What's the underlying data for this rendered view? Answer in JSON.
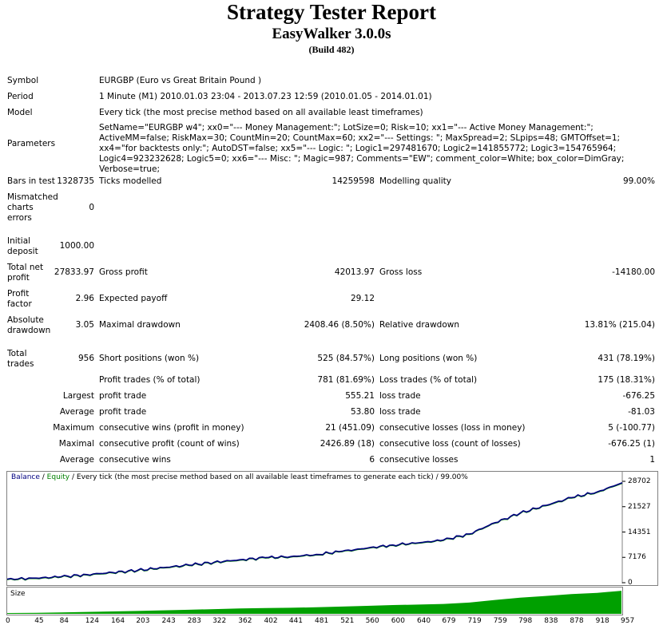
{
  "header": {
    "title": "Strategy Tester Report",
    "subtitle": "EasyWalker 3.0.0s",
    "build": "(Build 482)"
  },
  "summary": {
    "symbol_label": "Symbol",
    "symbol_value": "EURGBP (Euro vs Great Britain Pound )",
    "period_label": "Period",
    "period_value": "1 Minute (M1) 2010.01.03 23:04 - 2013.07.23 12:59 (2010.01.05 - 2014.01.01)",
    "model_label": "Model",
    "model_value": "Every tick (the most precise method based on all available least timeframes)",
    "parameters_label": "Parameters",
    "parameters_value": "SetName=\"EURGBP w4\"; xx0=\"--- Money Management:\"; LotSize=0; Risk=10; xx1=\"--- Active Money Management:\"; ActiveMM=false; RiskMax=30; CountMin=20; CountMax=60; xx2=\"--- Settings: \"; MaxSpread=2; SLpips=48; GMTOffset=1; xx4=\"for backtests only:\"; AutoDST=false; xx5=\"--- Logic: \"; Logic1=297481670; Logic2=141855772; Logic3=154765964; Logic4=923232628; Logic5=0; xx6=\"--- Misc: \"; Magic=987; Comments=\"EW\"; comment_color=White; box_color=DimGray; Verbose=true;"
  },
  "stats": {
    "bars_in_test_label": "Bars in test",
    "bars_in_test": "1328735",
    "ticks_modelled_label": "Ticks modelled",
    "ticks_modelled": "14259598",
    "modelling_quality_label": "Modelling quality",
    "modelling_quality": "99.00%",
    "mismatched_label_1": "Mismatched",
    "mismatched_label_2": "charts",
    "mismatched_label_3": "errors",
    "mismatched": "0",
    "initial_deposit_label_1": "Initial",
    "initial_deposit_label_2": "deposit",
    "initial_deposit": "1000.00",
    "total_net_profit_label_1": "Total net",
    "total_net_profit_label_2": "profit",
    "total_net_profit": "27833.97",
    "gross_profit_label": "Gross profit",
    "gross_profit": "42013.97",
    "gross_loss_label": "Gross loss",
    "gross_loss": "-14180.00",
    "profit_factor_label_1": "Profit",
    "profit_factor_label_2": "factor",
    "profit_factor": "2.96",
    "expected_payoff_label": "Expected payoff",
    "expected_payoff": "29.12",
    "absolute_drawdown_label_1": "Absolute",
    "absolute_drawdown_label_2": "drawdown",
    "absolute_drawdown": "3.05",
    "maximal_drawdown_label": "Maximal drawdown",
    "maximal_drawdown": "2408.46 (8.50%)",
    "relative_drawdown_label": "Relative drawdown",
    "relative_drawdown": "13.81% (215.04)",
    "total_trades_label_1": "Total",
    "total_trades_label_2": "trades",
    "total_trades": "956",
    "short_positions_label": "Short positions (won %)",
    "short_positions": "525 (84.57%)",
    "long_positions_label": "Long positions (won %)",
    "long_positions": "431 (78.19%)",
    "profit_trades_label": "Profit trades (% of total)",
    "profit_trades": "781 (81.69%)",
    "loss_trades_label": "Loss trades (% of total)",
    "loss_trades": "175 (18.31%)",
    "largest_label": "Largest",
    "largest_profit_label": "profit trade",
    "largest_profit": "555.21",
    "largest_loss_label": "loss trade",
    "largest_loss": "-676.25",
    "average_label": "Average",
    "average_profit_label": "profit trade",
    "average_profit": "53.80",
    "average_loss_label": "loss trade",
    "average_loss": "-81.03",
    "maximum_label": "Maximum",
    "max_consec_wins_label": "consecutive wins (profit in money)",
    "max_consec_wins": "21 (451.09)",
    "max_consec_losses_label": "consecutive losses (loss in money)",
    "max_consec_losses": "5 (-100.77)",
    "maximal_label": "Maximal",
    "maximal_consec_profit_label": "consecutive profit (count of wins)",
    "maximal_consec_profit": "2426.89 (18)",
    "maximal_consec_loss_label": "consecutive loss (count of losses)",
    "maximal_consec_loss": "-676.25 (1)",
    "avg2_label": "Average",
    "avg_consec_wins_label": "consecutive wins",
    "avg_consec_wins": "6",
    "avg_consec_losses_label": "consecutive losses",
    "avg_consec_losses": "1"
  },
  "chart_data": {
    "type": "line",
    "legend_balance": "Balance",
    "legend_sep": " / ",
    "legend_equity": "Equity",
    "legend_rest": " / Every tick (the most precise method based on all available least timeframes to generate each tick) / 99.00%",
    "size_label": "Size",
    "ylim": [
      0,
      28702
    ],
    "y_ticks": [
      "28702",
      "21527",
      "14351",
      "7176",
      "0"
    ],
    "x_ticks": [
      "0",
      "45",
      "84",
      "124",
      "164",
      "203",
      "243",
      "283",
      "322",
      "362",
      "402",
      "441",
      "481",
      "521",
      "560",
      "600",
      "640",
      "679",
      "719",
      "759",
      "798",
      "838",
      "878",
      "918",
      "957"
    ],
    "colors": {
      "balance": "#000080",
      "equity": "#008000",
      "size": "#00a000"
    },
    "x": [
      0,
      45,
      84,
      124,
      164,
      203,
      243,
      283,
      322,
      362,
      402,
      441,
      481,
      521,
      560,
      600,
      640,
      679,
      719,
      759,
      798,
      838,
      878,
      918,
      957
    ],
    "balance": [
      1000,
      1300,
      1700,
      2300,
      2900,
      3500,
      4300,
      5000,
      5800,
      6500,
      7100,
      7400,
      8000,
      8900,
      9800,
      10700,
      11300,
      12100,
      13800,
      17000,
      19700,
      21900,
      24100,
      25700,
      28300
    ]
  }
}
